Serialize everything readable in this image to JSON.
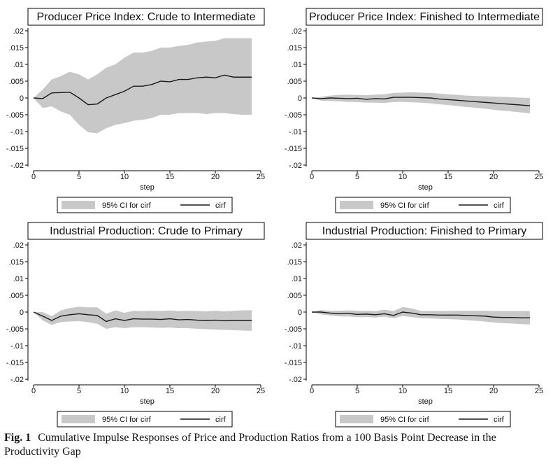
{
  "figure": {
    "caption_label": "Fig. 1",
    "caption_text": "Cumulative Impulse Responses of Price and Production Ratios from a 100 Basis Point Decrease in the Productivity Gap",
    "colors": {
      "band": "#c8c8c8",
      "line": "#1a1a1a",
      "frame": "#000000",
      "background": "#ffffff"
    }
  },
  "chart_data": [
    {
      "type": "line",
      "title": "Producer Price Index: Crude to Intermediate",
      "xlabel": "step",
      "ylabel": "",
      "xlim": [
        0,
        25
      ],
      "ylim": [
        -0.02,
        0.02
      ],
      "xticks": [
        "0",
        "5",
        "10",
        "15",
        "20",
        "25"
      ],
      "yticks": [
        ".02",
        ".015",
        ".01",
        ".005",
        "0",
        "-.005",
        "-.01",
        "-.015",
        "-.02"
      ],
      "legend": [
        "95% CI for cirf",
        "cirf"
      ],
      "x": [
        0,
        1,
        2,
        3,
        4,
        5,
        6,
        7,
        8,
        9,
        10,
        11,
        12,
        13,
        14,
        15,
        16,
        17,
        18,
        19,
        20,
        21,
        22,
        23,
        24
      ],
      "series": [
        {
          "name": "cirf",
          "values": [
            0,
            -0.0002,
            0.0015,
            0.0016,
            0.0017,
            0,
            -0.002,
            -0.0018,
            0,
            0.001,
            0.002,
            0.0035,
            0.0035,
            0.004,
            0.005,
            0.0048,
            0.0055,
            0.0055,
            0.006,
            0.0062,
            0.006,
            0.0068,
            0.0062,
            0.0062,
            0.0062
          ]
        },
        {
          "name": "95% CI lower",
          "values": [
            0,
            -0.003,
            -0.0025,
            -0.004,
            -0.005,
            -0.008,
            -0.0102,
            -0.0105,
            -0.009,
            -0.008,
            -0.0075,
            -0.0068,
            -0.0065,
            -0.006,
            -0.005,
            -0.005,
            -0.0045,
            -0.0045,
            -0.0045,
            -0.0048,
            -0.0045,
            -0.0045,
            -0.0048,
            -0.005,
            -0.005
          ]
        },
        {
          "name": "95% CI upper",
          "values": [
            0,
            0.0025,
            0.0055,
            0.0065,
            0.0078,
            0.007,
            0.0055,
            0.007,
            0.009,
            0.01,
            0.012,
            0.0135,
            0.0135,
            0.014,
            0.015,
            0.015,
            0.0155,
            0.0158,
            0.0165,
            0.0168,
            0.017,
            0.0178,
            0.0178,
            0.0178,
            0.0178
          ]
        }
      ]
    },
    {
      "type": "line",
      "title": "Producer Price Index: Finished to Intermediate",
      "xlabel": "step",
      "ylabel": "",
      "xlim": [
        0,
        25
      ],
      "ylim": [
        -0.02,
        0.02
      ],
      "xticks": [
        "0",
        "5",
        "10",
        "15",
        "20",
        "25"
      ],
      "yticks": [
        ".02",
        ".015",
        ".01",
        ".005",
        "0",
        "-.005",
        "-.01",
        "-.015",
        "-.02"
      ],
      "legend": [
        "95% CI for cirf",
        "cirf"
      ],
      "x": [
        0,
        1,
        2,
        3,
        4,
        5,
        6,
        7,
        8,
        9,
        10,
        11,
        12,
        13,
        14,
        15,
        16,
        17,
        18,
        19,
        20,
        21,
        22,
        23,
        24
      ],
      "series": [
        {
          "name": "cirf",
          "values": [
            0,
            -0.0002,
            0,
            -0.0001,
            -0.0002,
            -0.0001,
            -0.0004,
            -0.0002,
            -0.0003,
            0.0002,
            0.0002,
            0.0002,
            0.0001,
            0,
            -0.0003,
            -0.0005,
            -0.0007,
            -0.0009,
            -0.0011,
            -0.0013,
            -0.0015,
            -0.0017,
            -0.0019,
            -0.0021,
            -0.0023
          ]
        },
        {
          "name": "95% CI lower",
          "values": [
            0,
            -0.0008,
            -0.0009,
            -0.001,
            -0.0012,
            -0.0012,
            -0.0014,
            -0.0014,
            -0.0015,
            -0.0012,
            -0.0012,
            -0.0013,
            -0.0014,
            -0.0016,
            -0.0019,
            -0.0021,
            -0.0024,
            -0.0027,
            -0.0029,
            -0.0032,
            -0.0035,
            -0.0038,
            -0.004,
            -0.0043,
            -0.0046
          ]
        },
        {
          "name": "95% CI upper",
          "values": [
            0,
            0.0003,
            0.0007,
            0.0009,
            0.001,
            0.0009,
            0.0008,
            0.001,
            0.0011,
            0.0015,
            0.0016,
            0.0017,
            0.0016,
            0.0015,
            0.0013,
            0.0011,
            0.0009,
            0.0007,
            0.0006,
            0.0005,
            0.0004,
            0.0003,
            0.0002,
            0.0001,
            0
          ]
        }
      ]
    },
    {
      "type": "line",
      "title": "Industrial Production: Crude to Primary",
      "xlabel": "step",
      "ylabel": "",
      "xlim": [
        0,
        25
      ],
      "ylim": [
        -0.02,
        0.02
      ],
      "xticks": [
        "0",
        "5",
        "10",
        "15",
        "20",
        "25"
      ],
      "yticks": [
        ".02",
        ".015",
        ".01",
        ".005",
        "0",
        "-.005",
        "-.01",
        "-.015",
        "-.02"
      ],
      "legend": [
        "95% CI for cirf",
        "cirf"
      ],
      "x": [
        0,
        1,
        2,
        3,
        4,
        5,
        6,
        7,
        8,
        9,
        10,
        11,
        12,
        13,
        14,
        15,
        16,
        17,
        18,
        19,
        20,
        21,
        22,
        23,
        24
      ],
      "series": [
        {
          "name": "cirf",
          "values": [
            0,
            -0.0012,
            -0.0025,
            -0.0012,
            -0.0008,
            -0.0005,
            -0.0008,
            -0.001,
            -0.0028,
            -0.002,
            -0.0025,
            -0.002,
            -0.0021,
            -0.0021,
            -0.0022,
            -0.002,
            -0.0023,
            -0.0022,
            -0.0024,
            -0.0025,
            -0.0024,
            -0.0026,
            -0.0025,
            -0.0025,
            -0.0025
          ]
        },
        {
          "name": "95% CI lower",
          "values": [
            0,
            -0.0025,
            -0.0038,
            -0.003,
            -0.0028,
            -0.0027,
            -0.003,
            -0.0035,
            -0.005,
            -0.0045,
            -0.0048,
            -0.0045,
            -0.0045,
            -0.0046,
            -0.0047,
            -0.0046,
            -0.0048,
            -0.0048,
            -0.005,
            -0.0051,
            -0.0052,
            -0.0053,
            -0.0054,
            -0.0055,
            -0.0056
          ]
        },
        {
          "name": "95% CI upper",
          "values": [
            0,
            0,
            -0.0012,
            0.0005,
            0.0012,
            0.0016,
            0.0014,
            0.0014,
            -0.0005,
            0.0005,
            -0.0002,
            0.0004,
            0.0003,
            0.0004,
            0.0003,
            0.0005,
            0.0003,
            0.0004,
            0.0003,
            0.0002,
            0.0004,
            0.0002,
            0.0004,
            0.0005,
            0.0006
          ]
        }
      ]
    },
    {
      "type": "line",
      "title": "Industrial Production: Finished to Primary",
      "xlabel": "step",
      "ylabel": "",
      "xlim": [
        0,
        25
      ],
      "ylim": [
        -0.02,
        0.02
      ],
      "xticks": [
        "0",
        "5",
        "10",
        "15",
        "20",
        "25"
      ],
      "yticks": [
        ".02",
        ".015",
        ".01",
        ".005",
        "0",
        "-.005",
        "-.01",
        "-.015",
        "-.02"
      ],
      "legend": [
        "95% CI for cirf",
        "cirf"
      ],
      "x": [
        0,
        1,
        2,
        3,
        4,
        5,
        6,
        7,
        8,
        9,
        10,
        11,
        12,
        13,
        14,
        15,
        16,
        17,
        18,
        19,
        20,
        21,
        22,
        23,
        24
      ],
      "series": [
        {
          "name": "cirf",
          "values": [
            0,
            0,
            -0.0003,
            -0.0005,
            -0.0004,
            -0.0007,
            -0.0006,
            -0.0008,
            -0.0005,
            -0.001,
            0,
            -0.0003,
            -0.0008,
            -0.0008,
            -0.0009,
            -0.0009,
            -0.0009,
            -0.001,
            -0.0011,
            -0.0012,
            -0.0015,
            -0.0016,
            -0.0016,
            -0.0017,
            -0.0017
          ]
        },
        {
          "name": "95% CI lower",
          "values": [
            0,
            -0.0007,
            -0.001,
            -0.0013,
            -0.0013,
            -0.0015,
            -0.0015,
            -0.0016,
            -0.0014,
            -0.0018,
            -0.0012,
            -0.0015,
            -0.0018,
            -0.0019,
            -0.002,
            -0.0021,
            -0.0022,
            -0.0024,
            -0.0026,
            -0.0028,
            -0.0031,
            -0.0033,
            -0.0034,
            -0.0036,
            -0.0037
          ]
        },
        {
          "name": "95% CI upper",
          "values": [
            0,
            0.0006,
            0.0004,
            0.0004,
            0.0005,
            0.0004,
            0.0004,
            0.0003,
            0.0007,
            0.0003,
            0.0015,
            0.0011,
            0.0003,
            0.0003,
            0.0003,
            0.0003,
            0.0004,
            0.0004,
            0.0004,
            0.0004,
            0.0003,
            0.0003,
            0.0003,
            0.0003,
            0.0003
          ]
        }
      ]
    }
  ]
}
